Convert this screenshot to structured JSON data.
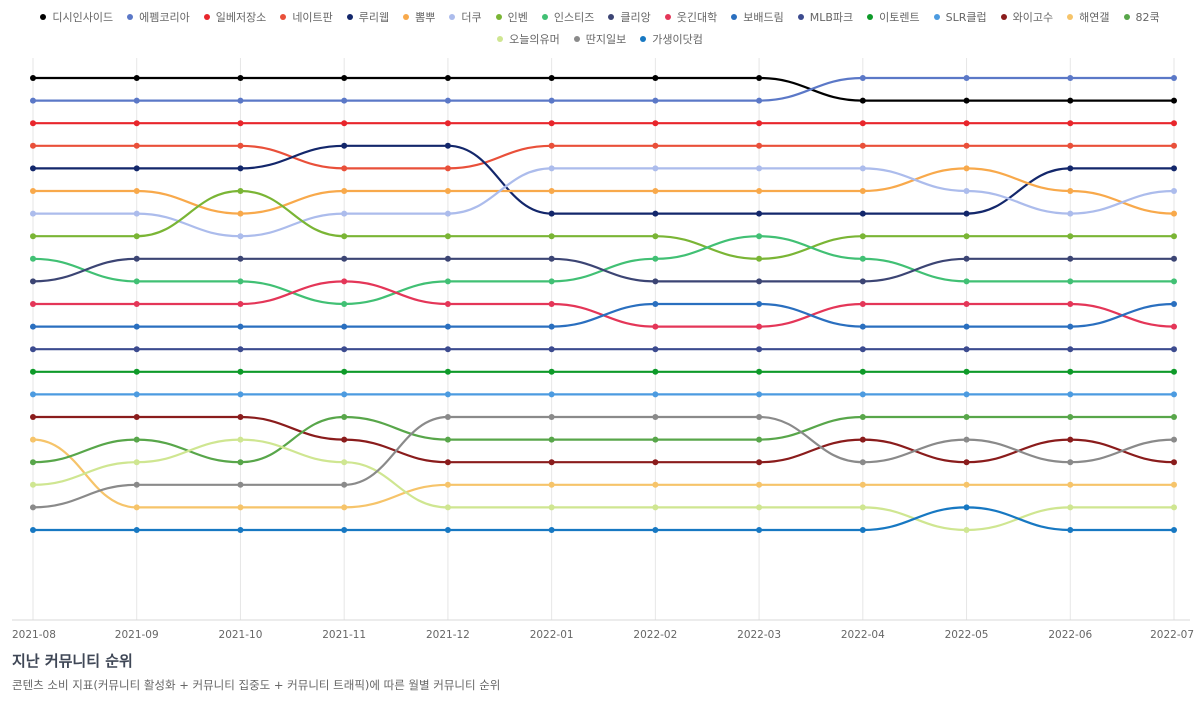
{
  "chart_data": {
    "type": "line",
    "x": [
      "2021-08",
      "2021-09",
      "2021-10",
      "2021-11",
      "2021-12",
      "2022-01",
      "2022-02",
      "2022-03",
      "2022-04",
      "2022-05",
      "2022-06",
      "2022-07"
    ],
    "y_reversed": true,
    "ylim": [
      1,
      25
    ],
    "grid": "vertical",
    "legend_position": "top",
    "series": [
      {
        "name": "디시인사이드",
        "color": "#000000",
        "values": [
          1,
          1,
          1,
          1,
          1,
          1,
          1,
          1,
          2,
          2,
          2,
          2
        ]
      },
      {
        "name": "에펨코리아",
        "color": "#5b78c7",
        "values": [
          2,
          2,
          2,
          2,
          2,
          2,
          2,
          2,
          1,
          1,
          1,
          1
        ]
      },
      {
        "name": "일베저장소",
        "color": "#e8262c",
        "values": [
          3,
          3,
          3,
          3,
          3,
          3,
          3,
          3,
          3,
          3,
          3,
          3
        ]
      },
      {
        "name": "네이트판",
        "color": "#e9503a",
        "values": [
          4,
          4,
          4,
          5,
          5,
          4,
          4,
          4,
          4,
          4,
          4,
          4
        ]
      },
      {
        "name": "루리웹",
        "color": "#13276b",
        "values": [
          5,
          5,
          5,
          4,
          4,
          7,
          7,
          7,
          7,
          7,
          5,
          5
        ]
      },
      {
        "name": "뽐뿌",
        "color": "#f8a94b",
        "values": [
          6,
          6,
          7,
          6,
          6,
          6,
          6,
          6,
          6,
          5,
          6,
          7
        ]
      },
      {
        "name": "더쿠",
        "color": "#acbcec",
        "values": [
          7,
          7,
          8,
          7,
          7,
          5,
          5,
          5,
          5,
          6,
          7,
          6
        ]
      },
      {
        "name": "인벤",
        "color": "#7ab535",
        "values": [
          8,
          8,
          6,
          8,
          8,
          8,
          8,
          9,
          8,
          8,
          8,
          8
        ]
      },
      {
        "name": "인스티즈",
        "color": "#41c074",
        "values": [
          9,
          10,
          10,
          11,
          10,
          10,
          9,
          8,
          9,
          10,
          10,
          10
        ]
      },
      {
        "name": "클리앙",
        "color": "#3c4574",
        "values": [
          10,
          9,
          9,
          9,
          9,
          9,
          10,
          10,
          10,
          9,
          9,
          9
        ]
      },
      {
        "name": "웃긴대학",
        "color": "#e43658",
        "values": [
          11,
          11,
          11,
          10,
          11,
          11,
          12,
          12,
          11,
          11,
          11,
          12
        ]
      },
      {
        "name": "보배드림",
        "color": "#2a6fbf",
        "values": [
          12,
          12,
          12,
          12,
          12,
          12,
          11,
          11,
          12,
          12,
          12,
          11
        ]
      },
      {
        "name": "MLB파크",
        "color": "#3c4b8f",
        "values": [
          13,
          13,
          13,
          13,
          13,
          13,
          13,
          13,
          13,
          13,
          13,
          13
        ]
      },
      {
        "name": "이토렌트",
        "color": "#0e9a29",
        "values": [
          14,
          14,
          14,
          14,
          14,
          14,
          14,
          14,
          14,
          14,
          14,
          14
        ]
      },
      {
        "name": "SLR클럽",
        "color": "#4c9be0",
        "values": [
          15,
          15,
          15,
          15,
          15,
          15,
          15,
          15,
          15,
          15,
          15,
          15
        ]
      },
      {
        "name": "와이고수",
        "color": "#8a1c1c",
        "values": [
          16,
          16,
          16,
          17,
          18,
          18,
          18,
          18,
          17,
          18,
          17,
          18
        ]
      },
      {
        "name": "해연갤",
        "color": "#f6c46a",
        "values": [
          17,
          20,
          20,
          20,
          19,
          19,
          19,
          19,
          19,
          19,
          19,
          19
        ]
      },
      {
        "name": "82쿡",
        "color": "#58a64a",
        "values": [
          18,
          17,
          18,
          16,
          17,
          17,
          17,
          17,
          16,
          16,
          16,
          16
        ]
      },
      {
        "name": "오늘의유머",
        "color": "#cfe691",
        "values": [
          19,
          18,
          17,
          18,
          20,
          20,
          20,
          20,
          20,
          21,
          20,
          20
        ]
      },
      {
        "name": "딴지일보",
        "color": "#8a8a8a",
        "values": [
          20,
          19,
          19,
          19,
          16,
          16,
          16,
          16,
          18,
          17,
          18,
          17
        ]
      },
      {
        "name": "가생이닷컴",
        "color": "#1778c2",
        "values": [
          21,
          21,
          21,
          21,
          21,
          21,
          21,
          21,
          21,
          20,
          21,
          21
        ]
      }
    ]
  },
  "caption": {
    "title": "지난 커뮤니티 순위",
    "subtitle": "콘텐츠 소비 지표(커뮤니티 활성화 + 커뮤니티 집중도 + 커뮤니티 트래픽)에 따른 월별 커뮤니티 순위"
  }
}
